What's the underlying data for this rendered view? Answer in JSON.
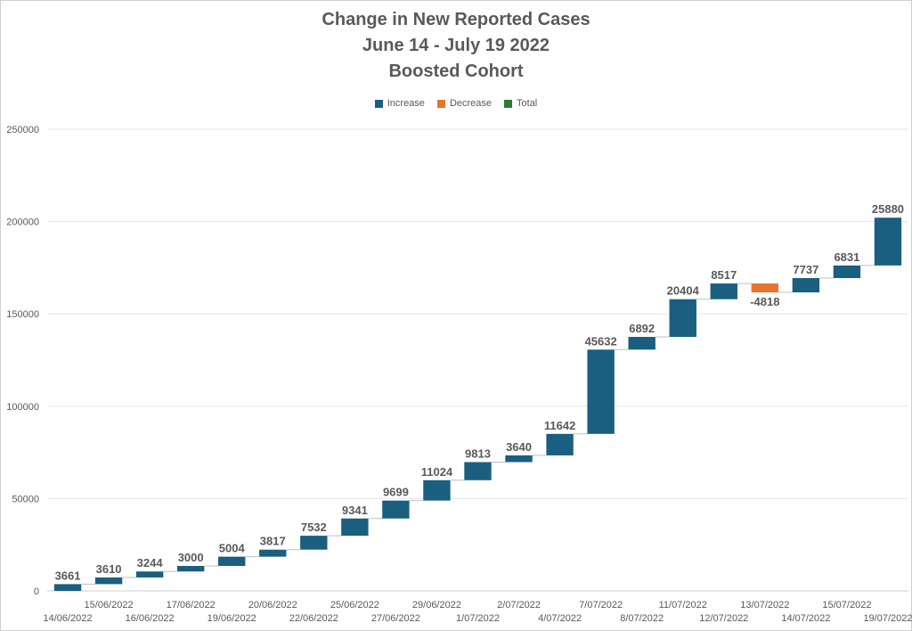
{
  "colors": {
    "increase": "#1a5f80",
    "decrease": "#e8742f",
    "total": "#2e7d32",
    "grid": "#e6e6e6",
    "text": "#595959"
  },
  "chart_data": {
    "type": "waterfall",
    "title": [
      "Change in New Reported Cases",
      "June 14 - July 19 2022",
      "Boosted Cohort"
    ],
    "legend": [
      "Increase",
      "Decrease",
      "Total"
    ],
    "legend_position": "top",
    "grid": true,
    "ylim": [
      0,
      250000
    ],
    "yticks": [
      "0",
      "50000",
      "100000",
      "150000",
      "200000",
      "250000"
    ],
    "categories": [
      "14/06/2022",
      "15/06/2022",
      "16/06/2022",
      "17/06/2022",
      "19/06/2022",
      "20/06/2022",
      "22/06/2022",
      "25/06/2022",
      "27/06/2022",
      "29/06/2022",
      "1/07/2022",
      "2/07/2022",
      "4/07/2022",
      "7/07/2022",
      "8/07/2022",
      "11/07/2022",
      "12/07/2022",
      "13/07/2022",
      "14/07/2022",
      "15/07/2022",
      "19/07/2022"
    ],
    "values": [
      3661,
      3610,
      3244,
      3000,
      5004,
      3817,
      7532,
      9341,
      9699,
      11024,
      9813,
      3640,
      11642,
      45632,
      6892,
      20404,
      8517,
      -4818,
      7737,
      6831,
      25880
    ],
    "data_labels": [
      "3661",
      "3610",
      "3244",
      "3000",
      "5004",
      "3817",
      "7532",
      "9341",
      "9699",
      "11024",
      "9813",
      "3640",
      "11642",
      "45632",
      "6892",
      "20404",
      "8517",
      "-4818",
      "7737",
      "6831",
      "25880"
    ]
  }
}
